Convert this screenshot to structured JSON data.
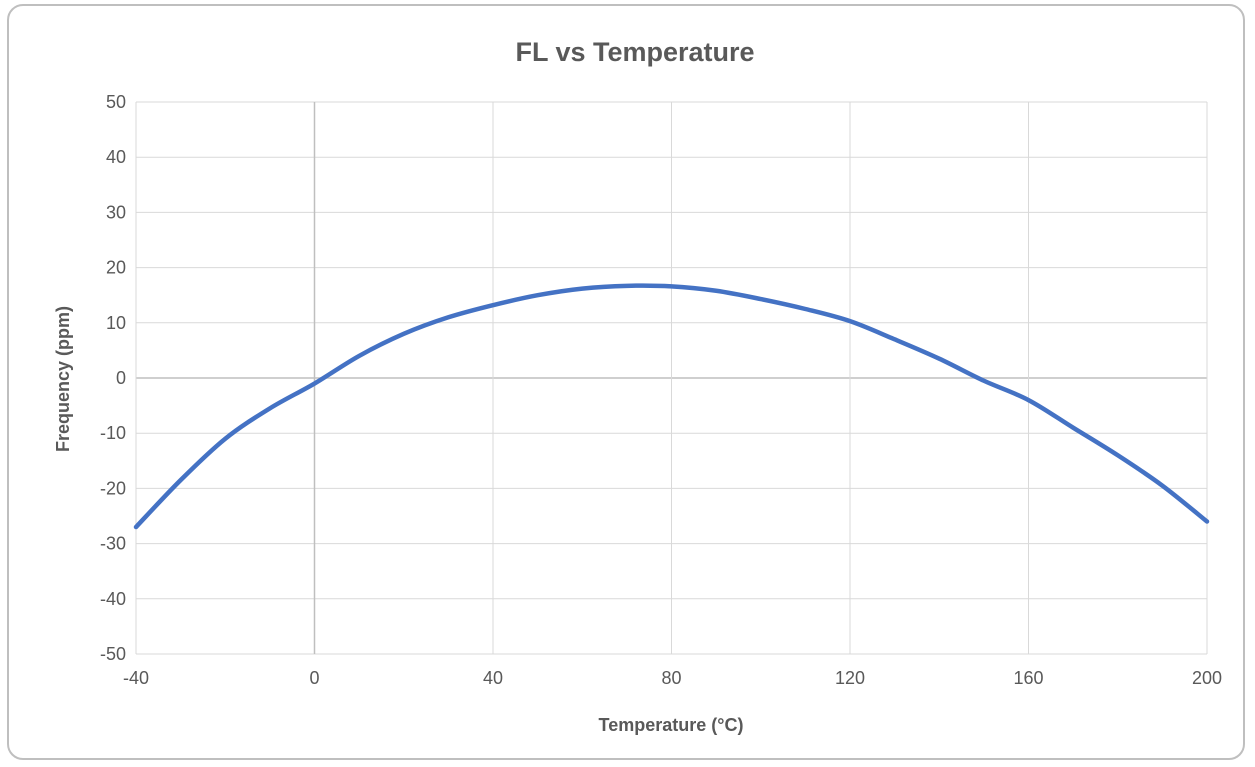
{
  "chart_data": {
    "type": "line",
    "title": "FL vs Temperature",
    "xlabel": "Temperature (°C)",
    "ylabel": "Frequency (ppm)",
    "xlim": [
      -40,
      200
    ],
    "ylim": [
      -50,
      50
    ],
    "x_ticks": [
      "-40",
      "0",
      "40",
      "80",
      "120",
      "160",
      "200"
    ],
    "y_ticks": [
      "50",
      "40",
      "30",
      "20",
      "10",
      "0",
      "-10",
      "-20",
      "-30",
      "-40",
      "-50"
    ],
    "grid": true,
    "legend": "none",
    "series": [
      {
        "color": "#4472c4",
        "x": [
          -40,
          -30,
          -20,
          -10,
          0,
          10,
          20,
          30,
          40,
          50,
          60,
          70,
          80,
          90,
          100,
          110,
          120,
          130,
          140,
          150,
          160,
          170,
          180,
          190,
          200
        ],
        "y": [
          -27.0,
          -18.5,
          -11.0,
          -5.5,
          -1.0,
          4.0,
          8.0,
          11.0,
          13.2,
          15.0,
          16.2,
          16.7,
          16.6,
          15.8,
          14.3,
          12.5,
          10.3,
          7.0,
          3.5,
          -0.5,
          -4.0,
          -9.0,
          -14.0,
          -19.5,
          -26.0
        ]
      }
    ]
  }
}
